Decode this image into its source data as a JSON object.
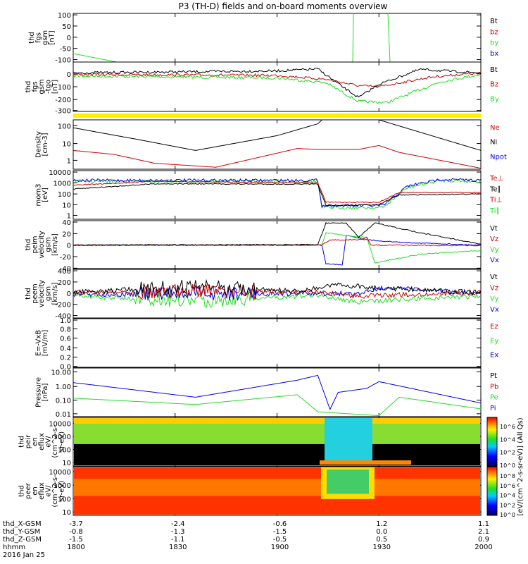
{
  "title": "P3 (TH-D) fields and on-board moments overview",
  "colors": {
    "black": "#000000",
    "red": "#cc0000",
    "green": "#22dd22",
    "blue": "#0000ee",
    "yellow": "#ffee00"
  },
  "panels": [
    {
      "id": "fgs1",
      "ylabel": [
        "thd",
        "fgs",
        "gsm",
        "[nT]"
      ],
      "ticks": [
        "100",
        "50",
        "0",
        "-50",
        "-100"
      ],
      "legend": [
        {
          "t": "Bt",
          "c": "black"
        },
        {
          "t": "bz",
          "c": "red"
        },
        {
          "t": "by",
          "c": "green"
        },
        {
          "t": "bx",
          "c": "blue"
        }
      ]
    },
    {
      "id": "fgs2",
      "ylabel": [
        "thd",
        "fgs",
        "gsm",
        "-tgo",
        "[nT]"
      ],
      "ticks": [
        "0",
        "-100",
        "-200",
        "-300"
      ],
      "legend": [
        {
          "t": "Bt",
          "c": "black"
        },
        {
          "t": "Bz",
          "c": "red"
        },
        {
          "t": "By",
          "c": "green"
        }
      ]
    },
    {
      "id": "density",
      "ylabel": [
        "Density",
        "[cm-3]"
      ],
      "ticks": [
        "100",
        "10",
        "1"
      ],
      "legend": [
        {
          "t": "Ne",
          "c": "red"
        },
        {
          "t": "Ni",
          "c": "black"
        },
        {
          "t": "Npot",
          "c": "blue"
        }
      ]
    },
    {
      "id": "temp",
      "ylabel": [
        "mom3",
        "[eV]"
      ],
      "ticks": [
        "10000",
        "1000",
        "100",
        "10",
        "1"
      ],
      "legend": [
        {
          "t": "Te⊥",
          "c": "red"
        },
        {
          "t": "Te∥",
          "c": "black"
        },
        {
          "t": "Ti⊥",
          "c": "red"
        },
        {
          "t": "Ti∥",
          "c": "green"
        }
      ]
    },
    {
      "id": "peim",
      "ylabel": [
        "thd",
        "peim",
        "velocity",
        "gsm",
        "[km/s]"
      ],
      "ticks": [
        "40",
        "20",
        "0",
        "-20",
        "-40"
      ],
      "legend": [
        {
          "t": "Vt",
          "c": "black"
        },
        {
          "t": "Vz",
          "c": "red"
        },
        {
          "t": "Vy",
          "c": "green"
        },
        {
          "t": "Vx",
          "c": "blue"
        }
      ]
    },
    {
      "id": "peem",
      "ylabel": [
        "thd",
        "peem",
        "velocity",
        "gsm",
        "[km/s]"
      ],
      "ticks": [
        "400",
        "200",
        "0",
        "-200",
        "-400"
      ],
      "legend": [
        {
          "t": "Vt",
          "c": "black"
        },
        {
          "t": "Vz",
          "c": "red"
        },
        {
          "t": "Vy",
          "c": "green"
        },
        {
          "t": "Vx",
          "c": "blue"
        }
      ]
    },
    {
      "id": "efield",
      "ylabel": [
        "E=-VxB",
        "[mV/m]"
      ],
      "ticks": [
        "1.0",
        "0.8",
        "0.6",
        "0.4",
        "0.2",
        "0.0"
      ],
      "legend": [
        {
          "t": "Ez",
          "c": "red"
        },
        {
          "t": "Ey",
          "c": "green"
        },
        {
          "t": "Ex",
          "c": "blue"
        }
      ]
    },
    {
      "id": "pressure",
      "ylabel": [
        "Pressure",
        "[nPa]"
      ],
      "ticks": [
        "10.00",
        "1.00",
        "0.10",
        "0.01"
      ],
      "legend": [
        {
          "t": "Pt",
          "c": "black"
        },
        {
          "t": "Pb",
          "c": "red"
        },
        {
          "t": "Pe",
          "c": "green"
        },
        {
          "t": "Pi",
          "c": "blue"
        }
      ]
    },
    {
      "id": "peir",
      "ylabel": [
        "thd",
        "peir",
        "en",
        "eflux",
        "eV/",
        "(cm^2-s-",
        "sr-eV)"
      ],
      "ticks": [
        "10000",
        "1000",
        "100",
        "10"
      ],
      "legend": []
    },
    {
      "id": "peer",
      "ylabel": [
        "thd",
        "peer",
        "en",
        "eflux",
        "eV/",
        "(cm^2-s-",
        "sr-eV)"
      ],
      "ticks": [
        "10000",
        "1000",
        "100",
        "10"
      ],
      "legend": []
    }
  ],
  "colorbar": {
    "label": "[eV/(cm^2-s-sr-eV)] (All Qs)",
    "upper_ticks": [
      "10^6",
      "10^4",
      "10^2",
      "10^0"
    ],
    "lower_ticks": [
      "10^8",
      "10^6",
      "10^4",
      "10^2",
      "10^0"
    ]
  },
  "x_axis": {
    "row_labels": [
      "thd_X-GSM",
      "thd_Y-GSM",
      "thd_Z-GSM",
      "hhmm"
    ],
    "date": "2016 Jan 25",
    "columns": [
      [
        "-3.7",
        "-0.8",
        "-1.5",
        "1800"
      ],
      [
        "-2.4",
        "-1.3",
        "-1.1",
        "1830"
      ],
      [
        "-0.6",
        "-1.5",
        "-0.5",
        "1900"
      ],
      [
        "1.2",
        "0.0",
        "0.5",
        "1930"
      ],
      [
        "1.1",
        "2.1",
        "0.9",
        "2000"
      ]
    ]
  },
  "chart_data": {
    "type": "line",
    "time_range_hhmm": [
      "1800",
      "2000"
    ],
    "notes": "overview stack of 10 panels; line panels + 2 energy spectrograms"
  }
}
